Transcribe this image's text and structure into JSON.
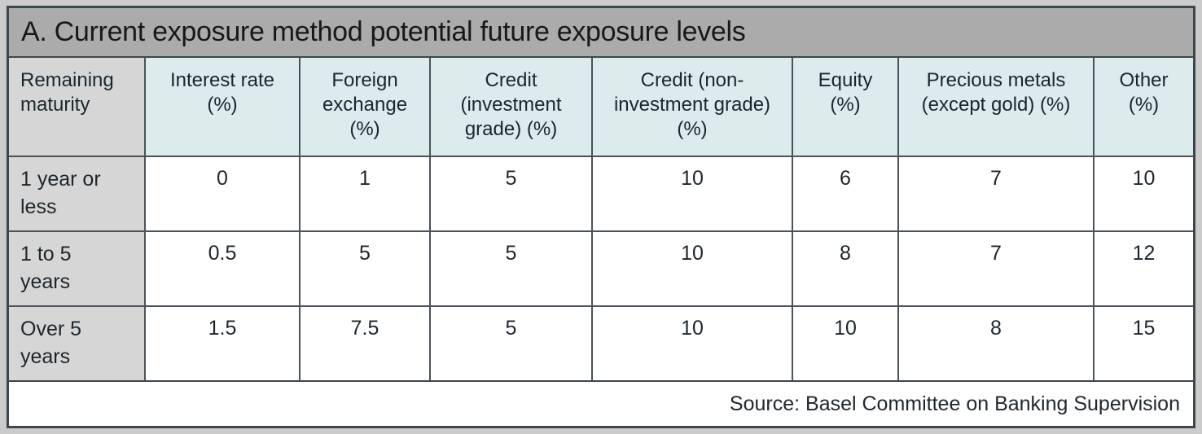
{
  "table": {
    "title": "A. Current exposure method potential future exposure levels",
    "columns": [
      "Remaining maturity",
      "Interest rate (%)",
      "Foreign exchange (%)",
      "Credit (investment grade) (%)",
      "Credit (non-investment grade) (%)",
      "Equity (%)",
      "Precious metals (except gold) (%)",
      "Other (%)"
    ],
    "rows": [
      {
        "label": "1 year or less",
        "values": [
          "0",
          "1",
          "5",
          "10",
          "6",
          "7",
          "10"
        ]
      },
      {
        "label": "1 to 5 years",
        "values": [
          "0.5",
          "5",
          "5",
          "10",
          "8",
          "7",
          "12"
        ]
      },
      {
        "label": "Over 5 years",
        "values": [
          "1.5",
          "7.5",
          "5",
          "10",
          "10",
          "8",
          "15"
        ]
      }
    ],
    "source": "Source: Basel Committee on Banking Supervision"
  },
  "chart_data": {
    "type": "table",
    "title": "A. Current exposure method potential future exposure levels",
    "columns": [
      "Remaining maturity",
      "Interest rate (%)",
      "Foreign exchange (%)",
      "Credit (investment grade) (%)",
      "Credit (non-investment grade) (%)",
      "Equity (%)",
      "Precious metals (except gold) (%)",
      "Other (%)"
    ],
    "rows": [
      [
        "1 year or less",
        0,
        1,
        5,
        10,
        6,
        7,
        10
      ],
      [
        "1 to 5 years",
        0.5,
        5,
        5,
        10,
        8,
        7,
        12
      ],
      [
        "Over 5 years",
        1.5,
        7.5,
        5,
        10,
        10,
        8,
        15
      ]
    ],
    "source": "Source: Basel Committee on Banking Supervision"
  },
  "colors": {
    "page_background": "#cbcbcb",
    "title_bar_fill": "#ababab",
    "header_fill": "#dcebeb",
    "row_label_fill": "#d6d6d6",
    "data_cell_fill": "#ffffff",
    "border": "#3e464d",
    "grid_line": "#4a525a",
    "text": "#1d262c"
  }
}
